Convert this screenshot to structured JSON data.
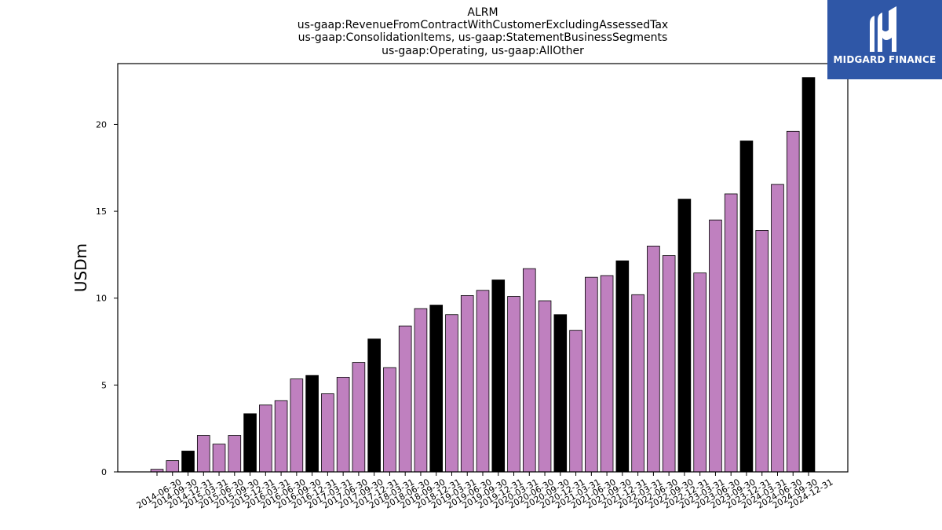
{
  "chart_data": {
    "type": "bar",
    "title_lines": [
      "ALRM",
      "us-gaap:RevenueFromContractWithCustomerExcludingAssessedTax",
      "us-gaap:ConsolidationItems, us-gaap:StatementBusinessSegments",
      "us-gaap:Operating, us-gaap:AllOther"
    ],
    "ylabel": "USDm",
    "xlabel": "",
    "ylim": [
      0,
      23.5
    ],
    "yticks": [
      0,
      5,
      10,
      15,
      20
    ],
    "grid": false,
    "categories": [
      "2014-06-30",
      "2014-09-30",
      "2014-12-31",
      "2015-03-31",
      "2015-06-30",
      "2015-09-30",
      "2015-12-31",
      "2016-03-31",
      "2016-06-30",
      "2016-09-30",
      "2016-12-31",
      "2017-03-31",
      "2017-06-30",
      "2017-09-30",
      "2017-12-31",
      "2018-03-31",
      "2018-06-30",
      "2018-09-30",
      "2018-12-31",
      "2019-03-31",
      "2019-06-30",
      "2019-09-30",
      "2019-12-31",
      "2020-03-31",
      "2020-06-30",
      "2020-09-30",
      "2020-12-31",
      "2021-03-31",
      "2021-06-30",
      "2021-09-30",
      "2021-12-31",
      "2022-03-31",
      "2022-06-30",
      "2022-09-30",
      "2022-12-31",
      "2023-03-31",
      "2023-06-30",
      "2023-09-30",
      "2023-12-31",
      "2024-03-31",
      "2024-06-30",
      "2024-09-30",
      "2024-12-31"
    ],
    "values": [
      0.15,
      0.65,
      1.2,
      2.1,
      1.6,
      2.1,
      3.35,
      3.85,
      4.1,
      5.35,
      5.55,
      4.5,
      5.45,
      6.3,
      7.65,
      6.0,
      8.4,
      9.4,
      9.6,
      9.05,
      10.15,
      10.45,
      11.05,
      10.1,
      11.7,
      9.85,
      9.05,
      8.15,
      11.2,
      11.3,
      12.15,
      10.2,
      13.0,
      12.45,
      15.7,
      11.45,
      14.5,
      16.0,
      19.05,
      13.9,
      16.55,
      19.6,
      22.7
    ],
    "colors": {
      "quarter": "#bf80bf",
      "year_end": "#000000",
      "edge": "#000000"
    },
    "year_end_suffix": "12-31"
  },
  "logo": {
    "text": "MIDGARD FINANCE",
    "background": "#2f57a7"
  }
}
